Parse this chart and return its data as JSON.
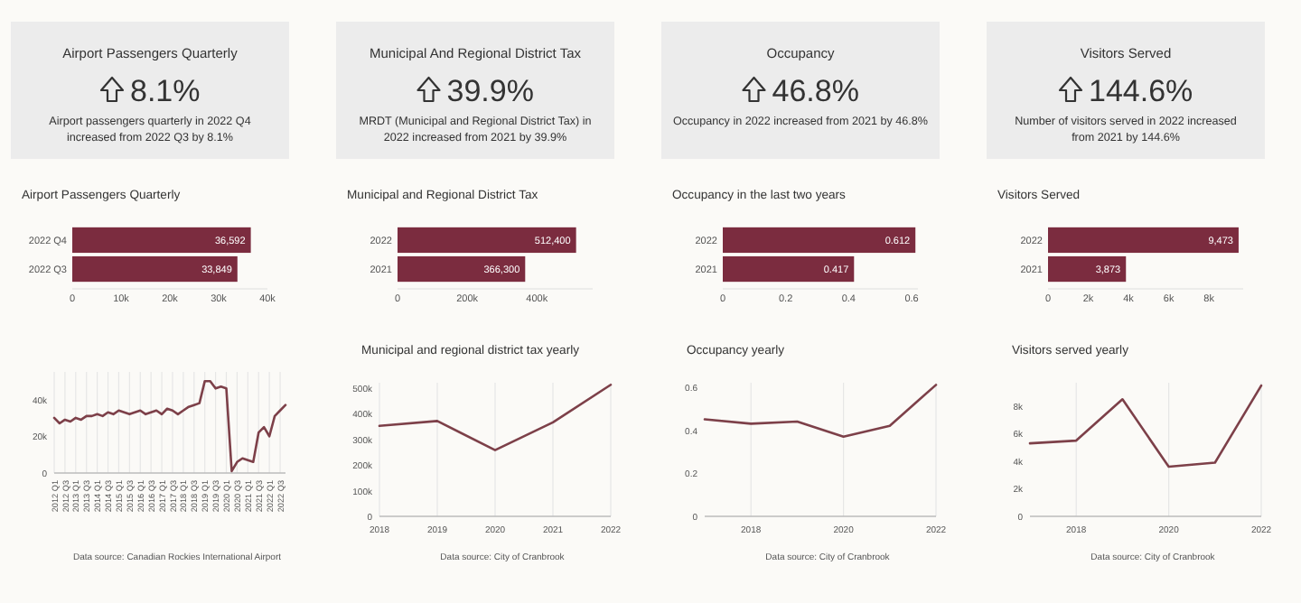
{
  "chart_data": [
    {
      "type": "other",
      "title": "Airport Passengers Quarterly",
      "subtitle": "8.1%",
      "annotations": [
        "Airport passengers quarterly in 2022 Q4 increased from 2022 Q3 by 8.1%"
      ]
    },
    {
      "type": "other",
      "title": "Municipal And Regional District Tax",
      "subtitle": "39.9%",
      "annotations": [
        "MRDT (Municipal and Regional District Tax) in 2022 increased from 2021 by 39.9%"
      ]
    },
    {
      "type": "other",
      "title": "Occupancy",
      "subtitle": "46.8%",
      "annotations": [
        "Occupancy in 2022 increased from 2021 by 46.8%"
      ]
    },
    {
      "type": "other",
      "title": "Visitors Served",
      "subtitle": "144.6%",
      "annotations": [
        "Number of visitors served in 2022 increased from 2021 by 144.6%"
      ]
    },
    {
      "type": "bar",
      "orientation": "horizontal",
      "title": "Airport Passengers Quarterly",
      "categories": [
        "2022 Q4",
        "2022 Q3"
      ],
      "values": [
        36592,
        33849
      ],
      "value_labels": [
        "36,592",
        "33,849"
      ],
      "color": "#7b2c3f",
      "xlim": [
        0,
        40000
      ],
      "xticks": [
        0,
        {
          "value": 10000,
          "label": "10k"
        },
        {
          "value": 20000,
          "label": "20k"
        },
        {
          "value": 30000,
          "label": "30k"
        },
        {
          "value": 40000,
          "label": "40k"
        }
      ]
    },
    {
      "type": "bar",
      "orientation": "horizontal",
      "title": "Municipal and Regional District Tax",
      "categories": [
        "2022",
        "2021"
      ],
      "values": [
        512400,
        366300
      ],
      "value_labels": [
        "512,400",
        "366,300"
      ],
      "color": "#7b2c3f",
      "xlim": [
        0,
        560000
      ],
      "xticks": [
        0,
        {
          "value": 200000,
          "label": "200k"
        },
        {
          "value": 400000,
          "label": "400k"
        }
      ]
    },
    {
      "type": "bar",
      "orientation": "horizontal",
      "title": "Occupancy in the last two years",
      "categories": [
        "2022",
        "2021"
      ],
      "values": [
        0.612,
        0.417
      ],
      "value_labels": [
        "0.612",
        "0.417"
      ],
      "color": "#7b2c3f",
      "xlim": [
        0,
        0.62
      ],
      "xticks": [
        0,
        0.2,
        0.4,
        0.6
      ]
    },
    {
      "type": "bar",
      "orientation": "horizontal",
      "title": "Visitors Served",
      "categories": [
        "2022",
        "2021"
      ],
      "values": [
        9473,
        3873
      ],
      "value_labels": [
        "9,473",
        "3,873"
      ],
      "color": "#7b2c3f",
      "xlim": [
        0,
        9700
      ],
      "xticks": [
        0,
        {
          "value": 2000,
          "label": "2k"
        },
        {
          "value": 4000,
          "label": "4k"
        },
        {
          "value": 6000,
          "label": "6k"
        },
        {
          "value": 8000,
          "label": "8k"
        }
      ]
    },
    {
      "type": "line",
      "categories": [
        "2012 Q1",
        null,
        "2012 Q3",
        null,
        "2013 Q1",
        null,
        "2013 Q3",
        null,
        "2014 Q1",
        null,
        "2014 Q3",
        null,
        "2015 Q1",
        null,
        "2015 Q3",
        null,
        "2016 Q1",
        null,
        "2016 Q3",
        null,
        "2017 Q1",
        null,
        "2017 Q3",
        null,
        "2018 Q1",
        null,
        "2018 Q3",
        null,
        "2019 Q1",
        null,
        "2019 Q3",
        null,
        "2020 Q1",
        null,
        "2020 Q3",
        null,
        "2021 Q1",
        null,
        "2021 Q3",
        null,
        "2022 Q1",
        null,
        "2022 Q3",
        null
      ],
      "values": [
        30000,
        27000,
        29000,
        28000,
        30000,
        29000,
        31000,
        31000,
        32000,
        31000,
        33000,
        32000,
        34000,
        33000,
        32000,
        33000,
        34000,
        32000,
        33000,
        34000,
        32000,
        35000,
        34000,
        32000,
        34000,
        36000,
        37000,
        38000,
        50000,
        50000,
        46000,
        47000,
        46000,
        1000,
        6000,
        8000,
        7000,
        6000,
        22000,
        25000,
        20000,
        31000,
        34000,
        37000
      ],
      "color": "#7d4049",
      "ylim": [
        0,
        55000
      ],
      "yticks": [
        0,
        {
          "value": 20000,
          "label": "20k"
        },
        {
          "value": 40000,
          "label": "40k"
        }
      ],
      "grid": "x",
      "annotations": [
        "Data source: Canadian Rockies International Airport"
      ]
    },
    {
      "type": "line",
      "title": "Municipal and regional district tax yearly",
      "x": [
        2018,
        2019,
        2020,
        2021,
        2022
      ],
      "values": [
        352000,
        371000,
        258000,
        366000,
        512000
      ],
      "color": "#7d4049",
      "xlim": [
        2018,
        2022
      ],
      "xticks": [
        2018,
        2019,
        2020,
        2021,
        2022
      ],
      "ylim": [
        0,
        520000
      ],
      "yticks": [
        0,
        {
          "value": 100000,
          "label": "100k"
        },
        {
          "value": 200000,
          "label": "200k"
        },
        {
          "value": 300000,
          "label": "300k"
        },
        {
          "value": 400000,
          "label": "400k"
        },
        {
          "value": 500000,
          "label": "500k"
        }
      ],
      "grid": "x",
      "annotations": [
        "Data source: City of Cranbrook"
      ]
    },
    {
      "type": "line",
      "title": "Occupancy yearly",
      "x": [
        2017,
        2018,
        2019,
        2020,
        2021,
        2022
      ],
      "values": [
        0.45,
        0.43,
        0.44,
        0.37,
        0.42,
        0.61
      ],
      "color": "#7d4049",
      "xlim": [
        2017,
        2022
      ],
      "xticks": [
        2018,
        2020,
        2022
      ],
      "ylim": [
        0,
        0.62
      ],
      "yticks": [
        0,
        0.2,
        0.4,
        0.6
      ],
      "grid": "x",
      "annotations": [
        "Data source: City of Cranbrook"
      ]
    },
    {
      "type": "line",
      "title": "Visitors served yearly",
      "x": [
        2017,
        2018,
        2019,
        2020,
        2021,
        2022
      ],
      "values": [
        5300,
        5500,
        8500,
        3600,
        3900,
        9500
      ],
      "color": "#7d4049",
      "xlim": [
        2017,
        2022
      ],
      "xticks": [
        2018,
        2020,
        2022
      ],
      "ylim": [
        0,
        9700
      ],
      "yticks": [
        0,
        {
          "value": 2000,
          "label": "2k"
        },
        {
          "value": 4000,
          "label": "4k"
        },
        {
          "value": 6000,
          "label": "6k"
        },
        {
          "value": 8000,
          "label": "8k"
        }
      ],
      "grid": "x",
      "annotations": [
        "Data source: City of Cranbrook"
      ]
    }
  ]
}
